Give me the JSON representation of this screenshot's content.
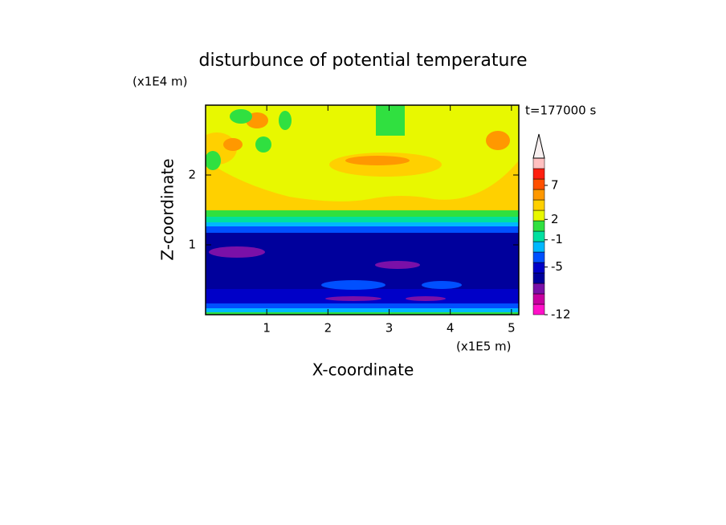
{
  "chart_data": {
    "type": "contour",
    "title": "disturbunce of potential temperature",
    "x_label": "X-coordinate",
    "y_label": "Z-coordinate",
    "x_unit": "(x1E5 m)",
    "y_unit": "(x1E4 m)",
    "annotation": "t=177000 s",
    "xlim": [
      0,
      5.12
    ],
    "ylim": [
      0,
      3.0
    ],
    "xticks": [
      1,
      2,
      3,
      4,
      5
    ],
    "yticks": [
      1,
      2
    ],
    "colorbar": {
      "clim": [
        -12,
        11
      ],
      "ticks": [
        -12,
        -5,
        -1,
        2,
        7
      ],
      "colors": [
        "#ff10c8",
        "#c800a0",
        "#7a10a8",
        "#00009c",
        "#0000c8",
        "#0050ff",
        "#00b8ff",
        "#00e0a0",
        "#30e040",
        "#e8f800",
        "#ffd000",
        "#ff9800",
        "#ff5000",
        "#ff2010",
        "#ffc0c0"
      ]
    }
  }
}
